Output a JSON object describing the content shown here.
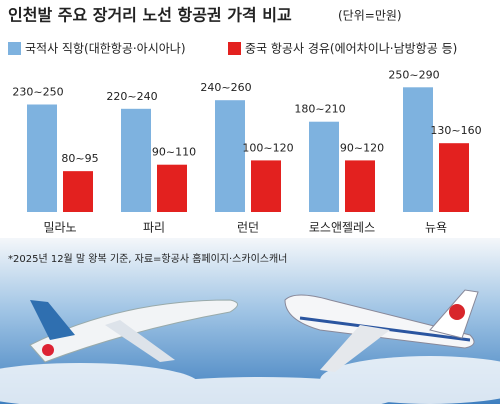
{
  "chart_data": {
    "type": "bar",
    "title": "인천발 주요 장거리 노선 항공권 가격 비교",
    "subtitle": "(단위=만원)",
    "categories": [
      "밀라노",
      "파리",
      "런던",
      "로스앤젤레스",
      "뉴욕"
    ],
    "series": [
      {
        "name": "국적사 직항(대한항공·아시아나)",
        "color": "#7eb2df",
        "values": [
          250,
          240,
          260,
          210,
          290
        ],
        "value_labels": [
          "230~250",
          "220~240",
          "240~260",
          "180~210",
          "250~290"
        ]
      },
      {
        "name": "중국 항공사 경유(에어차이나·남방항공 등)",
        "color": "#e3211f",
        "values": [
          95,
          110,
          120,
          120,
          160
        ],
        "value_labels": [
          "80~95",
          "90~110",
          "100~120",
          "90~120",
          "130~160"
        ]
      }
    ],
    "note": "*2025년 12월 말 왕복 기준, 자료=항공사 홈페이지·스카이스캐너"
  }
}
